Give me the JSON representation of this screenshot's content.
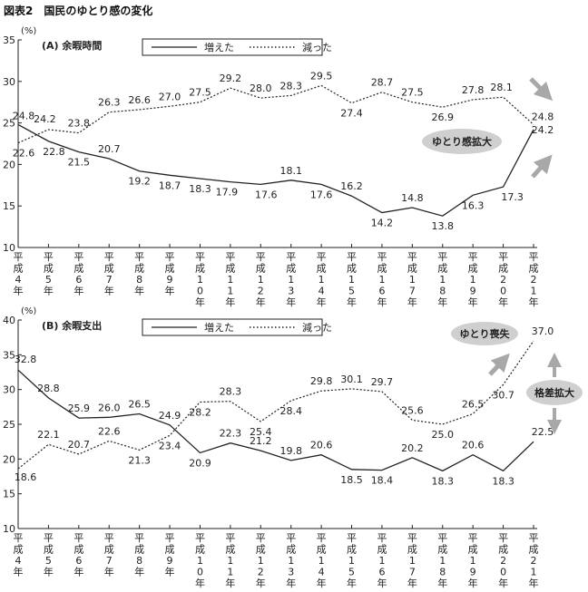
{
  "figure_title": "図表2　国民のゆとり感の変化",
  "x_categories": [
    "平成4年",
    "平成5年",
    "平成6年",
    "平成7年",
    "平成8年",
    "平成9年",
    "平成10年",
    "平成11年",
    "平成12年",
    "平成13年",
    "平成14年",
    "平成15年",
    "平成16年",
    "平成17年",
    "平成18年",
    "平成19年",
    "平成20年",
    "平成21年"
  ],
  "colors": {
    "line": "#222222",
    "callout_fill": "#cfcfcf",
    "arrow": "#a8a8a8"
  },
  "chart_data": [
    {
      "type": "line",
      "title": "(A) 余暇時間",
      "ylabel": "(%)",
      "ylim": [
        10,
        35
      ],
      "yticks": [
        10,
        15,
        20,
        25,
        30,
        35
      ],
      "legend_placement": "top",
      "grid": false,
      "series": [
        {
          "name": "増えた",
          "style": "solid",
          "values": [
            24.8,
            22.8,
            21.5,
            20.7,
            19.2,
            18.7,
            18.3,
            17.9,
            17.6,
            18.1,
            17.6,
            16.2,
            14.2,
            14.8,
            13.8,
            16.3,
            17.3,
            24.2
          ]
        },
        {
          "name": "減った",
          "style": "dotted",
          "values": [
            22.6,
            24.2,
            23.8,
            26.3,
            26.6,
            27.0,
            27.5,
            29.2,
            28.0,
            28.3,
            29.5,
            27.4,
            28.7,
            27.5,
            26.9,
            27.8,
            28.1,
            24.8
          ]
        }
      ],
      "annotation": "ゆとり感拡大"
    },
    {
      "type": "line",
      "title": "(B) 余暇支出",
      "ylabel": "(%)",
      "ylim": [
        10,
        40
      ],
      "yticks": [
        10,
        15,
        20,
        25,
        30,
        35,
        40
      ],
      "legend_placement": "top",
      "grid": false,
      "series": [
        {
          "name": "増えた",
          "style": "solid",
          "values": [
            32.8,
            28.8,
            25.9,
            26.0,
            26.5,
            24.9,
            20.9,
            22.3,
            21.2,
            19.8,
            20.6,
            18.5,
            18.4,
            20.2,
            18.3,
            20.6,
            18.3,
            22.5
          ]
        },
        {
          "name": "減った",
          "style": "dotted",
          "values": [
            18.6,
            22.1,
            20.7,
            22.6,
            21.3,
            23.4,
            28.2,
            28.3,
            25.4,
            28.4,
            29.8,
            30.1,
            29.7,
            25.6,
            25.0,
            26.5,
            30.7,
            37.0
          ]
        }
      ],
      "annotations": [
        "ゆとり喪失",
        "格差拡大"
      ]
    }
  ]
}
